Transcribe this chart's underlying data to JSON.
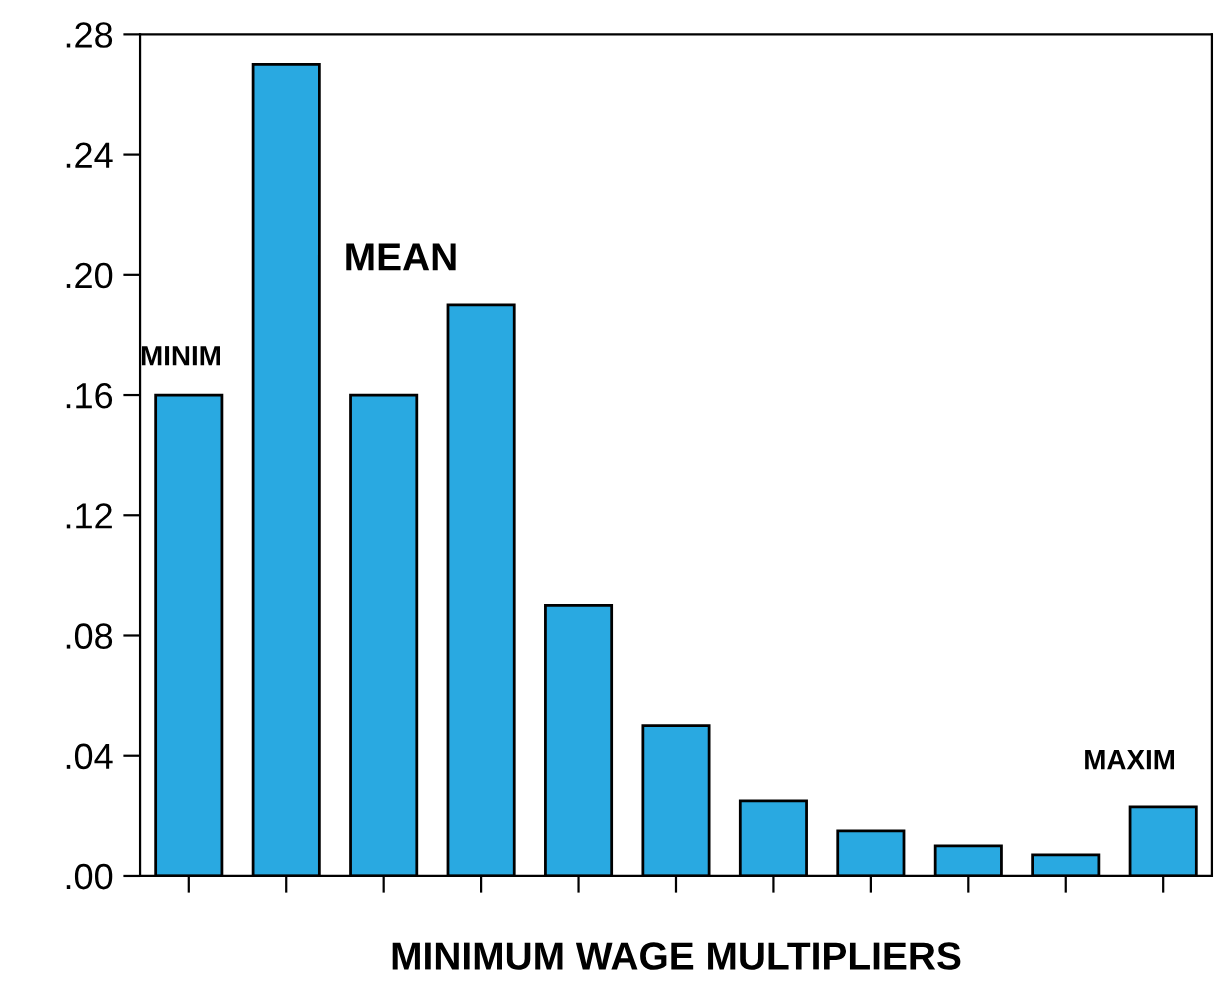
{
  "chart_data": {
    "type": "bar",
    "xlabel": "MINIMUM WAGE MULTIPLIERS",
    "categories": [
      null,
      null,
      null,
      null,
      null,
      null,
      null,
      null,
      null,
      null,
      null
    ],
    "values": [
      0.16,
      0.27,
      0.16,
      0.19,
      0.09,
      0.05,
      0.025,
      0.015,
      0.01,
      0.007,
      0.023
    ],
    "color": "#29a9e1",
    "ylim": [
      0,
      0.28
    ],
    "yticks": [
      {
        "value": 0,
        "label": ".00"
      },
      {
        "value": 0.04,
        "label": ".04"
      },
      {
        "value": 0.08,
        "label": ".08"
      },
      {
        "value": 0.12,
        "label": ".12"
      },
      {
        "value": 0.16,
        "label": ".16"
      },
      {
        "value": 0.2,
        "label": ".20"
      },
      {
        "value": 0.24,
        "label": ".24"
      },
      {
        "value": 0.28,
        "label": ".28"
      }
    ],
    "annotations": [
      "MINIM",
      "MEAN",
      "MAXIM"
    ]
  }
}
